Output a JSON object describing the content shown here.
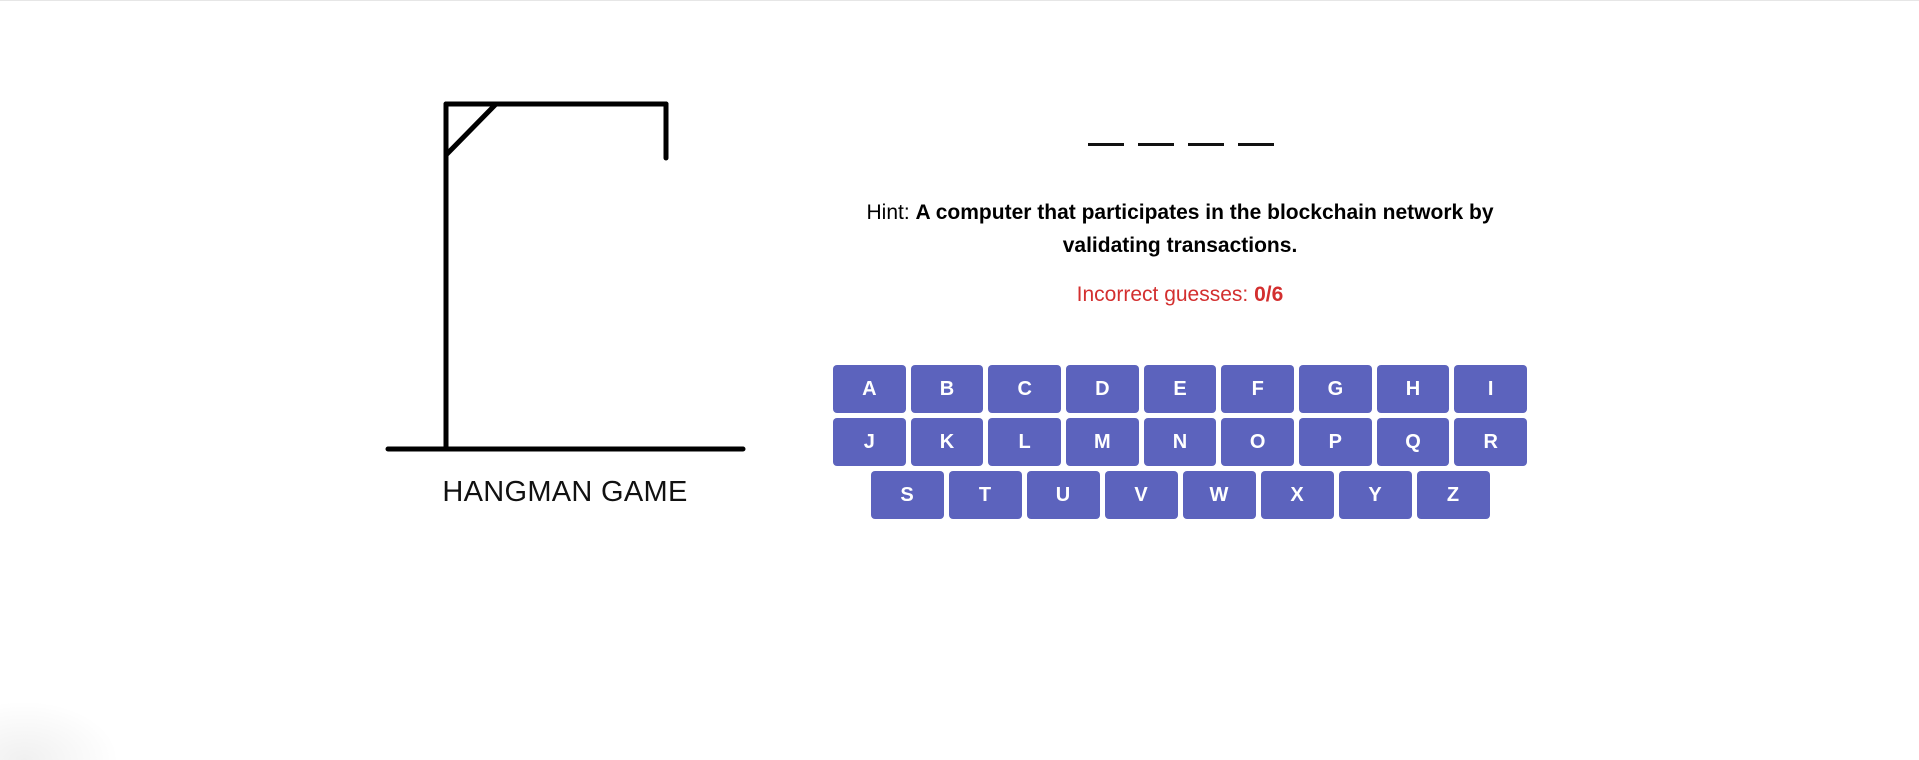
{
  "game": {
    "title": "HANGMAN GAME",
    "hint_label": "Hint:",
    "hint_text": "A computer that participates in the blockchain network by validating transactions.",
    "incorrect_label": "Incorrect guesses:",
    "incorrect_count": "0/6",
    "word_length": 4
  },
  "keyboard": {
    "row1": [
      "A",
      "B",
      "C",
      "D",
      "E",
      "F",
      "G",
      "H",
      "I"
    ],
    "row2": [
      "J",
      "K",
      "L",
      "M",
      "N",
      "O",
      "P",
      "Q",
      "R"
    ],
    "row3": [
      "S",
      "T",
      "U",
      "V",
      "W",
      "X",
      "Y",
      "Z"
    ]
  },
  "colors": {
    "key_background": "#5c63bd",
    "key_text": "#ffffff",
    "incorrect_text": "#d32f2f",
    "gallows": "#000000"
  }
}
